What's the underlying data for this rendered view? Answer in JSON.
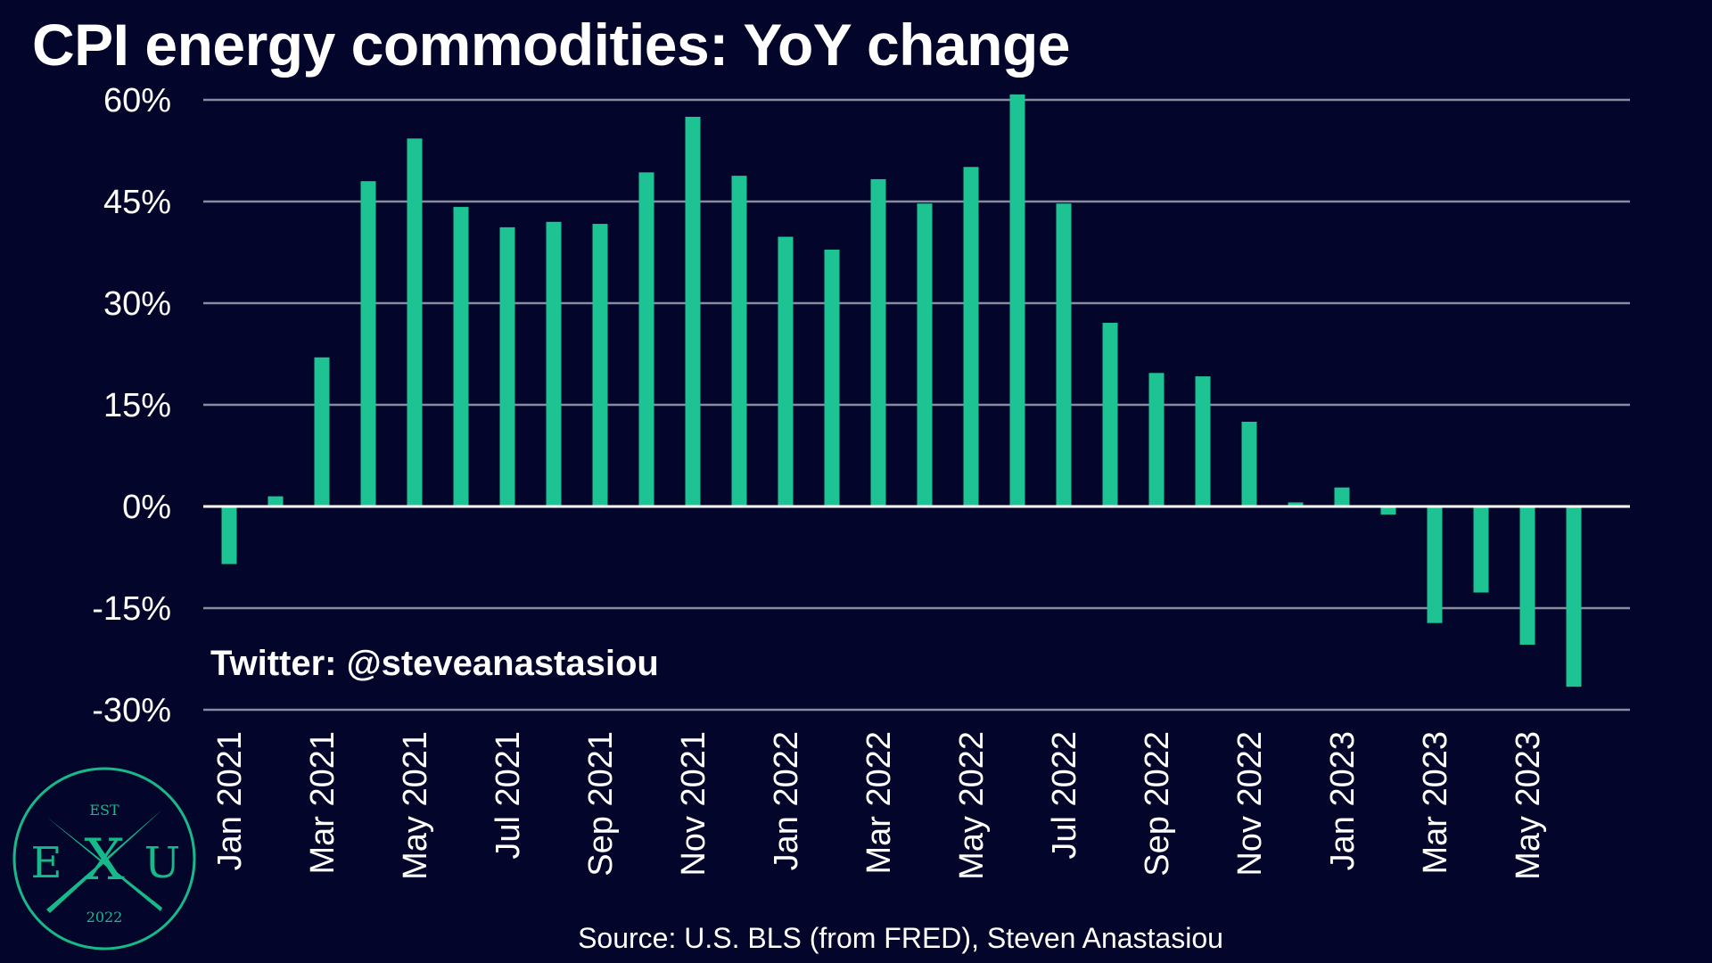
{
  "title": "CPI energy commodities: YoY change",
  "watermark": "Twitter: @steveanastasiou",
  "source": "Source: U.S. BLS (from FRED), Steven Anastasiou",
  "logo": {
    "top_text": "EST",
    "left_letter": "E",
    "center_letter": "X",
    "right_letter": "U",
    "bottom_text": "2022",
    "color": "#17b98a"
  },
  "colors": {
    "background": "#03052a",
    "bar": "#1dc392",
    "grid": "#8a8c9e",
    "zero_line": "#ffffff",
    "text": "#ffffff"
  },
  "chart_data": {
    "type": "bar",
    "title": "CPI energy commodities: YoY change",
    "xlabel": "",
    "ylabel": "",
    "ylim": [
      -30,
      60
    ],
    "yticks": [
      60,
      45,
      30,
      15,
      0,
      -15,
      -30
    ],
    "ytick_labels": [
      "60%",
      "45%",
      "30%",
      "15%",
      "0%",
      "-15%",
      "-30%"
    ],
    "grid": true,
    "categories": [
      "Jan 2021",
      "Feb 2021",
      "Mar 2021",
      "Apr 2021",
      "May 2021",
      "Jun 2021",
      "Jul 2021",
      "Aug 2021",
      "Sep 2021",
      "Oct 2021",
      "Nov 2021",
      "Dec 2021",
      "Jan 2022",
      "Feb 2022",
      "Mar 2022",
      "Apr 2022",
      "May 2022",
      "Jun 2022",
      "Jul 2022",
      "Aug 2022",
      "Sep 2022",
      "Oct 2022",
      "Nov 2022",
      "Dec 2022",
      "Jan 2023",
      "Feb 2023",
      "Mar 2023",
      "Apr 2023",
      "May 2023",
      "Jun 2023"
    ],
    "xtick_labels": [
      "Jan 2021",
      "",
      "Mar 2021",
      "",
      "May 2021",
      "",
      "Jul 2021",
      "",
      "Sep 2021",
      "",
      "Nov 2021",
      "",
      "Jan 2022",
      "",
      "Mar 2022",
      "",
      "May 2022",
      "",
      "Jul 2022",
      "",
      "Sep 2022",
      "",
      "Nov 2022",
      "",
      "Jan 2023",
      "",
      "Mar 2023",
      "",
      "May 2023",
      ""
    ],
    "values": [
      -8.5,
      1.5,
      22,
      48,
      54.3,
      44.2,
      41.2,
      42,
      41.7,
      49.3,
      57.5,
      48.8,
      39.8,
      37.9,
      48.3,
      44.7,
      50.1,
      60.8,
      44.7,
      27.1,
      19.7,
      19.2,
      12.5,
      0.6,
      2.8,
      -1.2,
      -17.2,
      -12.7,
      -20.4,
      -26.6
    ]
  }
}
